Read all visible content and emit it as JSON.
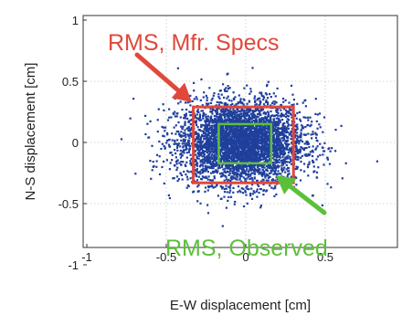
{
  "chart_data": {
    "type": "scatter",
    "title": "",
    "xlabel": "E-W displacement [cm]",
    "ylabel": "N-S displacement [cm]",
    "xlim": [
      -1,
      1
    ],
    "ylim": [
      -1,
      1
    ],
    "xticks": [
      -1,
      -0.5,
      0,
      0.5
    ],
    "yticks": [
      -1,
      -0.5,
      0,
      0.5,
      1
    ],
    "xtick_labels": [
      "-1",
      "-0.5",
      "0",
      "0.5"
    ],
    "ytick_labels": [
      "-1",
      "-0.5",
      "0",
      "0.5",
      "1"
    ],
    "grid": true,
    "legend": "none",
    "series": [
      {
        "marker": "dot",
        "color": "#1f3f9c",
        "distribution": "approximately Gaussian cloud centered near (-0.03, 0.00), std about 0.20 cm in E-W and 0.17 cm in N-S, several thousand points",
        "center": [
          -0.03,
          0.0
        ],
        "spread": [
          0.2,
          0.17
        ]
      }
    ],
    "rectangles": [
      {
        "x": [
          -0.33,
          0.3
        ],
        "y": [
          -0.33,
          0.29
        ],
        "color": "#e0483c"
      },
      {
        "x": [
          -0.17,
          0.16
        ],
        "y": [
          -0.17,
          0.15
        ],
        "color": "#5cbf3a"
      }
    ],
    "annotations": [
      {
        "text": "RMS, Mfr. Specs",
        "color": "#e0483c",
        "position": "top"
      },
      {
        "text": "RMS, Observed",
        "color": "#5cbf3a",
        "position": "bottom-right"
      }
    ],
    "colors": {
      "points": "#1f3f9c",
      "mfr_box": "#e0483c",
      "observed_box": "#5cbf3a",
      "grid": "#c8c8c8"
    }
  }
}
